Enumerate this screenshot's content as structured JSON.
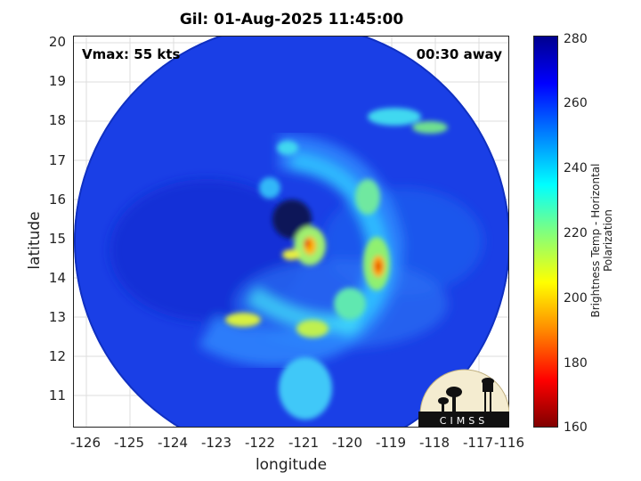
{
  "title": "Gil: 01-Aug-2025 11:45:00",
  "vmax_label": "Vmax: 55 kts",
  "away_label": "00:30 away",
  "xlabel": "longitude",
  "ylabel": "latitude",
  "x_ticks": [
    "-126",
    "-125",
    "-124",
    "-123",
    "-122",
    "-121",
    "-120",
    "-119",
    "-118",
    "-117",
    "-116"
  ],
  "y_ticks": [
    "20",
    "19",
    "18",
    "17",
    "16",
    "15",
    "14",
    "13",
    "12",
    "11"
  ],
  "colorbar": {
    "label": "Brightness Temp - Horizontal Polarization",
    "ticks": [
      "280",
      "260",
      "240",
      "220",
      "200",
      "180",
      "160"
    ],
    "range": [
      160,
      280
    ],
    "colormap": "jet"
  },
  "logo_text": "CIMSS",
  "colors": {
    "deep_blue": "#0a28d8",
    "background_ocean": "#1840e8"
  }
}
